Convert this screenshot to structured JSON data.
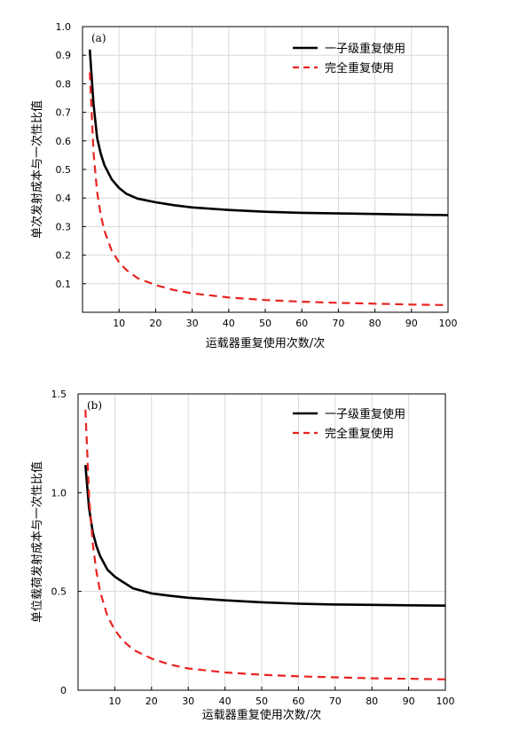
{
  "chart_data": [
    {
      "type": "line",
      "panel_label": "(a)",
      "xlabel": "运载器重复使用次数/次",
      "ylabel": "单次发射成本与一次性比值",
      "xlim": [
        0,
        100
      ],
      "ylim": [
        0,
        1.0
      ],
      "xticks": [
        10,
        20,
        30,
        40,
        50,
        60,
        70,
        80,
        90,
        100
      ],
      "yticks": [
        0.1,
        0.2,
        0.3,
        0.4,
        0.5,
        0.6,
        0.7,
        0.8,
        0.9,
        1.0
      ],
      "ytick_labels": [
        "0.1",
        "0.2",
        "0.3",
        "0.4",
        "0.5",
        "0.6",
        "0.7",
        "0.8",
        "0.9",
        "1.0"
      ],
      "grid": true,
      "legend_position": "top-right",
      "series": [
        {
          "name": "一子级重复使用",
          "color": "#000000",
          "style": "solid",
          "x": [
            2,
            3,
            4,
            5,
            6,
            8,
            10,
            12,
            15,
            20,
            25,
            30,
            40,
            50,
            60,
            70,
            80,
            90,
            100
          ],
          "y": [
            0.92,
            0.73,
            0.61,
            0.555,
            0.515,
            0.465,
            0.435,
            0.415,
            0.398,
            0.385,
            0.375,
            0.367,
            0.358,
            0.352,
            0.348,
            0.346,
            0.344,
            0.342,
            0.34
          ]
        },
        {
          "name": "完全重复使用",
          "color": "#e8231f",
          "style": "dashed",
          "x": [
            2,
            3,
            4,
            5,
            6,
            8,
            10,
            12,
            15,
            20,
            25,
            30,
            40,
            50,
            60,
            70,
            80,
            90,
            100
          ],
          "y": [
            0.84,
            0.56,
            0.42,
            0.34,
            0.285,
            0.215,
            0.175,
            0.148,
            0.12,
            0.095,
            0.078,
            0.066,
            0.052,
            0.043,
            0.037,
            0.033,
            0.03,
            0.027,
            0.025
          ]
        }
      ]
    },
    {
      "type": "line",
      "panel_label": "(b)",
      "xlabel": "运载器重复使用次数/次",
      "ylabel": "单位载荷发射成本与一次性比值",
      "xlim": [
        0,
        100
      ],
      "ylim": [
        0,
        1.5
      ],
      "xticks": [
        10,
        20,
        30,
        40,
        50,
        60,
        70,
        80,
        90,
        100
      ],
      "yticks": [
        0,
        0.5,
        1.0,
        1.5
      ],
      "ytick_labels": [
        "0",
        "0.5",
        "1.0",
        "1.5"
      ],
      "grid": true,
      "legend_position": "top-right",
      "series": [
        {
          "name": "一子级重复使用",
          "color": "#000000",
          "style": "solid",
          "x": [
            2,
            3,
            4,
            5,
            6,
            8,
            10,
            12,
            15,
            20,
            25,
            30,
            40,
            50,
            60,
            70,
            80,
            90,
            100
          ],
          "y": [
            1.14,
            0.92,
            0.8,
            0.73,
            0.68,
            0.61,
            0.575,
            0.55,
            0.515,
            0.49,
            0.478,
            0.468,
            0.455,
            0.445,
            0.438,
            0.434,
            0.432,
            0.43,
            0.428
          ]
        },
        {
          "name": "完全重复使用",
          "color": "#e8231f",
          "style": "dashed",
          "x": [
            2,
            3,
            4,
            5,
            6,
            8,
            10,
            12,
            15,
            20,
            25,
            30,
            40,
            50,
            60,
            70,
            80,
            90,
            100
          ],
          "y": [
            1.42,
            0.98,
            0.74,
            0.6,
            0.5,
            0.375,
            0.305,
            0.255,
            0.205,
            0.16,
            0.13,
            0.11,
            0.09,
            0.078,
            0.07,
            0.065,
            0.06,
            0.058,
            0.055
          ]
        }
      ]
    }
  ]
}
